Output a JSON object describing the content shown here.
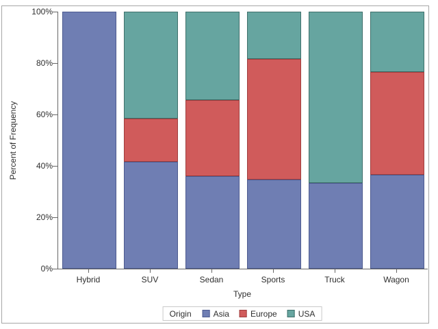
{
  "chart_data": {
    "type": "bar",
    "subtype": "stacked-percent",
    "xlabel": "Type",
    "ylabel": "Percent of Frequency",
    "categories": [
      "Hybrid",
      "SUV",
      "Sedan",
      "Sports",
      "Truck",
      "Wagon"
    ],
    "series": [
      {
        "name": "Asia",
        "color": "#6F7EB3",
        "border_color": "#4C5A8F",
        "values": [
          100,
          41.67,
          35.88,
          34.69,
          33.33,
          36.67
        ]
      },
      {
        "name": "Europe",
        "color": "#D05B5B",
        "border_color": "#9E3D3D",
        "values": [
          0,
          16.67,
          29.77,
          46.94,
          0,
          40.0
        ]
      },
      {
        "name": "USA",
        "color": "#66A5A0",
        "border_color": "#3E6F6A",
        "values": [
          0,
          41.67,
          34.35,
          18.37,
          66.67,
          23.33
        ]
      }
    ],
    "y_ticks": [
      {
        "label": "0%",
        "value": 0
      },
      {
        "label": "20%",
        "value": 20
      },
      {
        "label": "40%",
        "value": 40
      },
      {
        "label": "60%",
        "value": 60
      },
      {
        "label": "80%",
        "value": 80
      },
      {
        "label": "100%",
        "value": 100
      }
    ],
    "ylim": [
      0,
      100
    ],
    "grid": false,
    "legend": {
      "title": "Origin",
      "position": "bottom",
      "entries": [
        "Asia",
        "Europe",
        "USA"
      ]
    }
  },
  "colors": {
    "axis": "#666666",
    "text": "#2e2e2e",
    "frame_border": "#a6a6a6",
    "legend_border": "#c9c9c9",
    "background": "#ffffff"
  }
}
